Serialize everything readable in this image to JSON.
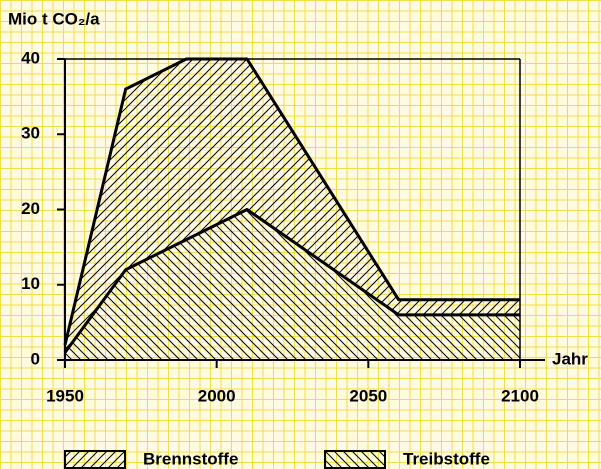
{
  "chart_data": {
    "type": "stacked_area",
    "ylabel": "Mio t CO₂/a",
    "xlabel": "Jahr",
    "x": [
      1950,
      1970,
      1990,
      2010,
      2060,
      2100
    ],
    "series": [
      {
        "name": "Brennstoffe",
        "color": "#000000",
        "hatch": "/",
        "values": [
          1,
          24,
          24,
          20,
          2,
          2
        ]
      },
      {
        "name": "Treibstoffe",
        "color": "#000000",
        "hatch": "\\",
        "values": [
          1,
          12,
          16,
          20,
          6,
          6
        ]
      }
    ],
    "stack_order": "last-at-bottom",
    "xlim": [
      1950,
      2100
    ],
    "xticks": [
      1950,
      2000,
      2050,
      2100
    ],
    "ylim": [
      0,
      40
    ],
    "yticks": [
      0,
      10,
      20,
      30,
      40
    ],
    "frame": true
  }
}
